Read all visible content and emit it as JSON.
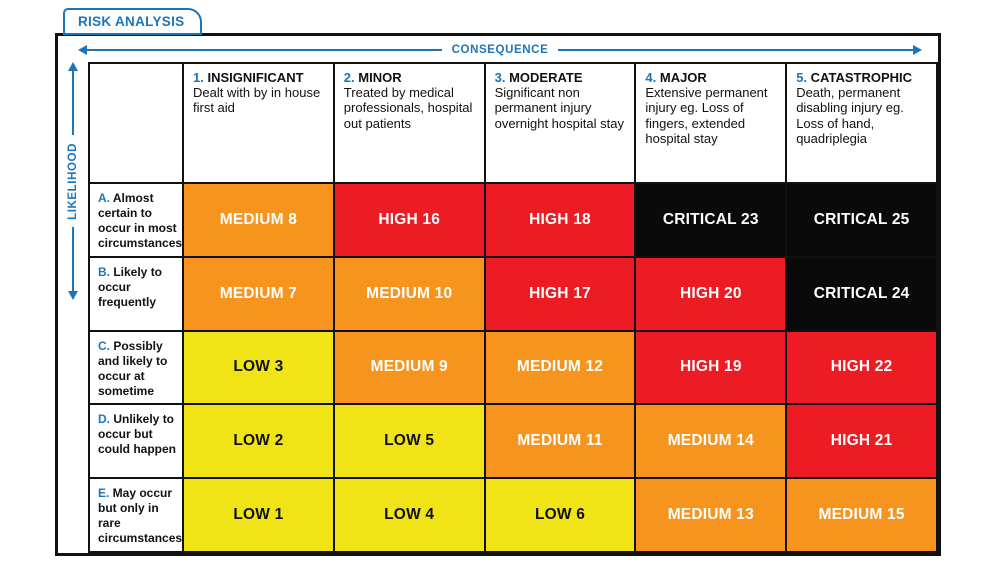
{
  "tab": {
    "label": "RISK ANALYSIS"
  },
  "axes": {
    "consequence": "CONSEQUENCE",
    "likelihood": "LIKELIHOOD"
  },
  "palette": {
    "accent_blue": "#1B75BC",
    "low_bg": "#F0E316",
    "medium_bg": "#F7941E",
    "high_bg": "#EC1B24",
    "critical_bg": "#0A0A0A"
  },
  "columns": [
    {
      "num": "1.",
      "name": "INSIGNIFICANT",
      "desc": "Dealt with by in house first aid"
    },
    {
      "num": "2.",
      "name": "MINOR",
      "desc": "Treated by medical professionals, hospital out patients"
    },
    {
      "num": "3.",
      "name": "MODERATE",
      "desc": "Significant non permanent injury overnight hospital stay"
    },
    {
      "num": "4.",
      "name": "MAJOR",
      "desc": "Extensive permanent injury  eg. Loss of fingers, extended hospital stay"
    },
    {
      "num": "5.",
      "name": "CATASTROPHIC",
      "desc": "Death, permanent disabling injury eg. Loss of hand, quadriplegia"
    }
  ],
  "rows": [
    {
      "letter": "A.",
      "desc": " Almost certain to occur in most circumstances",
      "cells": [
        {
          "label": "MEDIUM 8",
          "level": "medium",
          "bg": "#F7941E",
          "fg": "#FFFFFF"
        },
        {
          "label": "HIGH 16",
          "level": "high",
          "bg": "#EC1B24",
          "fg": "#FFFFFF"
        },
        {
          "label": "HIGH 18",
          "level": "high",
          "bg": "#EC1B24",
          "fg": "#FFFFFF"
        },
        {
          "label": "CRITICAL 23",
          "level": "critical",
          "bg": "#0A0A0A",
          "fg": "#FFFFFF"
        },
        {
          "label": "CRITICAL 25",
          "level": "critical",
          "bg": "#0A0A0A",
          "fg": "#FFFFFF"
        }
      ]
    },
    {
      "letter": "B.",
      "desc": " Likely to occur frequently",
      "cells": [
        {
          "label": "MEDIUM 7",
          "level": "medium",
          "bg": "#F7941E",
          "fg": "#FFFFFF"
        },
        {
          "label": "MEDIUM 10",
          "level": "medium",
          "bg": "#F7941E",
          "fg": "#FFFFFF"
        },
        {
          "label": "HIGH 17",
          "level": "high",
          "bg": "#EC1B24",
          "fg": "#FFFFFF"
        },
        {
          "label": "HIGH 20",
          "level": "high",
          "bg": "#EC1B24",
          "fg": "#FFFFFF"
        },
        {
          "label": "CRITICAL 24",
          "level": "critical",
          "bg": "#0A0A0A",
          "fg": "#FFFFFF"
        }
      ]
    },
    {
      "letter": "C.",
      "desc": " Possibly and likely to occur at sometime",
      "cells": [
        {
          "label": "LOW 3",
          "level": "low",
          "bg": "#F0E316",
          "fg": "#111111"
        },
        {
          "label": "MEDIUM 9",
          "level": "medium",
          "bg": "#F7941E",
          "fg": "#FFFFFF"
        },
        {
          "label": "MEDIUM 12",
          "level": "medium",
          "bg": "#F7941E",
          "fg": "#FFFFFF"
        },
        {
          "label": "HIGH 19",
          "level": "high",
          "bg": "#EC1B24",
          "fg": "#FFFFFF"
        },
        {
          "label": "HIGH 22",
          "level": "high",
          "bg": "#EC1B24",
          "fg": "#FFFFFF"
        }
      ]
    },
    {
      "letter": "D.",
      "desc": " Unlikely to occur but could happen",
      "cells": [
        {
          "label": "LOW 2",
          "level": "low",
          "bg": "#F0E316",
          "fg": "#111111"
        },
        {
          "label": "LOW 5",
          "level": "low",
          "bg": "#F0E316",
          "fg": "#111111"
        },
        {
          "label": "MEDIUM 11",
          "level": "medium",
          "bg": "#F7941E",
          "fg": "#FFFFFF"
        },
        {
          "label": "MEDIUM 14",
          "level": "medium",
          "bg": "#F7941E",
          "fg": "#FFFFFF"
        },
        {
          "label": "HIGH 21",
          "level": "high",
          "bg": "#EC1B24",
          "fg": "#FFFFFF"
        }
      ]
    },
    {
      "letter": "E.",
      "desc": " May occur but only in rare circumstances",
      "cells": [
        {
          "label": "LOW 1",
          "level": "low",
          "bg": "#F0E316",
          "fg": "#111111"
        },
        {
          "label": "LOW 4",
          "level": "low",
          "bg": "#F0E316",
          "fg": "#111111"
        },
        {
          "label": "LOW 6",
          "level": "low",
          "bg": "#F0E316",
          "fg": "#111111"
        },
        {
          "label": "MEDIUM 13",
          "level": "medium",
          "bg": "#F7941E",
          "fg": "#FFFFFF"
        },
        {
          "label": "MEDIUM 15",
          "level": "medium",
          "bg": "#F7941E",
          "fg": "#FFFFFF"
        }
      ]
    }
  ]
}
